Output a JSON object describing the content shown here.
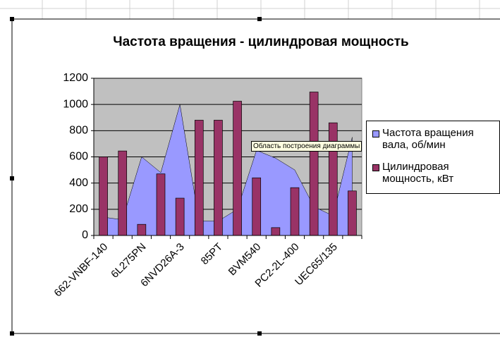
{
  "chart_data": {
    "type": "bar-area",
    "title": "Частота вращения - цилиндровая мощность",
    "categories": [
      "662-VNBF-140",
      null,
      "6L275PN",
      null,
      "6NVD26A-3",
      null,
      "85PT",
      null,
      "BVM540",
      null,
      "PC2-2L-400",
      null,
      "UEC65/135",
      null
    ],
    "series": [
      {
        "name": "Частота вращения вала, об/мин",
        "color": "#9999ff",
        "kind": "area",
        "values": [
          140,
          120,
          600,
          480,
          1000,
          110,
          110,
          200,
          650,
          590,
          500,
          220,
          150,
          750
        ]
      },
      {
        "name": "Цилиндровая мощность, кВт",
        "color": "#993366",
        "kind": "bar",
        "values": [
          600,
          645,
          85,
          470,
          285,
          880,
          880,
          1025,
          440,
          60,
          365,
          1095,
          860,
          340
        ]
      }
    ],
    "ylim": [
      0,
      1200
    ],
    "yticks": [
      0,
      200,
      400,
      600,
      800,
      1000,
      1200
    ],
    "grid": true,
    "plot_background": "#c0c0c0",
    "legend": "right"
  },
  "tooltip": "Область построения диаграммы"
}
